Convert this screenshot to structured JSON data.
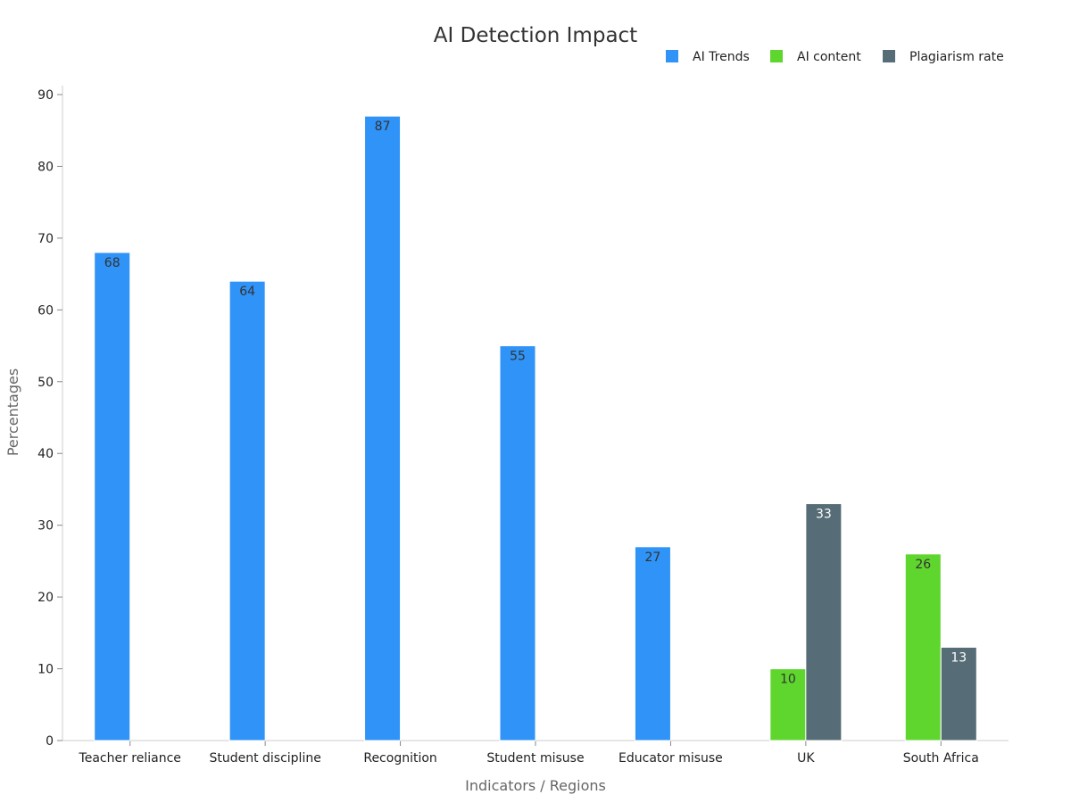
{
  "chart_data": {
    "type": "bar",
    "title": "AI Detection Impact",
    "xlabel": "Indicators / Regions",
    "ylabel": "Percentages",
    "ylim": [
      0,
      90
    ],
    "yticks": [
      0,
      10,
      20,
      30,
      40,
      50,
      60,
      70,
      80,
      90
    ],
    "grid": false,
    "legend_position": "top-right",
    "categories": [
      "Teacher reliance",
      "Student discipline",
      "Recognition",
      "Student misuse",
      "Educator misuse",
      "UK",
      "South Africa"
    ],
    "series": [
      {
        "name": "AI Trends",
        "color": "#2f93f7",
        "label_color": "#333333",
        "values": [
          68,
          64,
          87,
          55,
          27,
          null,
          null
        ]
      },
      {
        "name": "AI content",
        "color": "#5fd62d",
        "label_color": "#333333",
        "values": [
          null,
          null,
          null,
          null,
          null,
          10,
          26
        ]
      },
      {
        "name": "Plagiarism rate",
        "color": "#566c76",
        "label_color": "#ffffff",
        "values": [
          null,
          null,
          null,
          null,
          null,
          33,
          13
        ]
      }
    ]
  }
}
